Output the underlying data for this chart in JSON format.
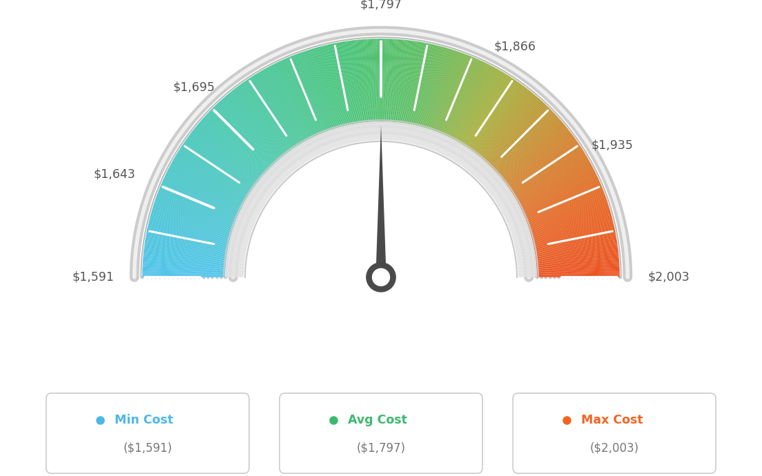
{
  "min_val": 1591,
  "max_val": 2003,
  "avg_val": 1797,
  "label_data": [
    [
      1591,
      "$1,591"
    ],
    [
      1643,
      "$1,643"
    ],
    [
      1695,
      "$1,695"
    ],
    [
      1797,
      "$1,797"
    ],
    [
      1866,
      "$1,866"
    ],
    [
      1935,
      "$1,935"
    ],
    [
      2003,
      "$2,003"
    ]
  ],
  "num_ticks": 17,
  "min_color_rgb": [
    78,
    182,
    232
  ],
  "mid_color_rgb": [
    66,
    188,
    148
  ],
  "green_color_rgb": [
    76,
    190,
    110
  ],
  "olive_color_rgb": [
    160,
    170,
    60
  ],
  "max_color_rgb": [
    235,
    95,
    35
  ],
  "needle_color": "#4a4a4a",
  "needle_circle_outer": "#4a4a4a",
  "needle_circle_inner": "#ffffff",
  "bg_color": "#ffffff",
  "gauge_border_color": "#d4d4d4",
  "inner_band_color": "#e8e8e8",
  "tick_color": "#ffffff",
  "label_color": "#555555",
  "legend_dot_colors": [
    "#4ab8e8",
    "#3db870",
    "#f26522"
  ],
  "legend_label_min": "Min Cost",
  "legend_label_avg": "Avg Cost",
  "legend_label_max": "Max Cost",
  "legend_value_min": "($1,591)",
  "legend_value_avg": "($1,797)",
  "legend_value_max": "($2,003)",
  "legend_box_border": "#cccccc",
  "legend_value_color": "#777777"
}
